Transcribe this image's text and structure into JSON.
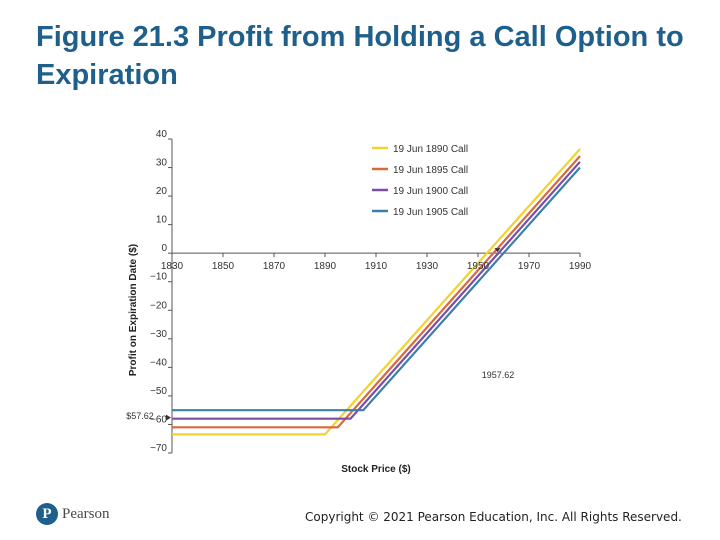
{
  "slide": {
    "title": "Figure 21.3 Profit from Holding a Call Option to Expiration",
    "logo_text": "Pearson",
    "logo_glyph": "P",
    "copyright": "Copyright © 2021 Pearson Education, Inc. All Rights Reserved."
  },
  "chart_data": {
    "type": "line",
    "title": "",
    "xlabel": "Stock Price ($)",
    "ylabel": "Profit on Expiration Date ($)",
    "xlim": [
      1830,
      1990
    ],
    "ylim": [
      -70,
      40
    ],
    "x_ticks": [
      "1830",
      "1850",
      "1870",
      "1890",
      "1910",
      "1930",
      "1950",
      "1970",
      "1990"
    ],
    "y_ticks": [
      "40",
      "30",
      "20",
      "10",
      "0",
      "−10",
      "−20",
      "−30",
      "−40",
      "−50",
      "−60",
      "−70"
    ],
    "x_tick_values": [
      1830,
      1850,
      1870,
      1890,
      1910,
      1930,
      1950,
      1970,
      1990
    ],
    "y_tick_values": [
      40,
      30,
      20,
      10,
      0,
      -10,
      -20,
      -30,
      -40,
      -50,
      -60,
      -70
    ],
    "legend_position": "top-right",
    "series": [
      {
        "name": "19 Jun 1890 Call",
        "color": "#f2d22e",
        "x": [
          1830,
          1890,
          1990
        ],
        "y": [
          -63.5,
          -63.5,
          36.5
        ]
      },
      {
        "name": "19 Jun 1895 Call",
        "color": "#d9683c",
        "x": [
          1830,
          1895,
          1990
        ],
        "y": [
          -61,
          -61,
          34
        ]
      },
      {
        "name": "19 Jun 1900 Call",
        "color": "#7a4ea8",
        "x": [
          1830,
          1900,
          1990
        ],
        "y": [
          -58,
          -58,
          32
        ]
      },
      {
        "name": "19 Jun 1905 Call",
        "color": "#3c7fa8",
        "x": [
          1830,
          1905,
          1990
        ],
        "y": [
          -55,
          -55,
          30
        ]
      }
    ],
    "annotations": [
      {
        "text": "$57.62",
        "x": 1830,
        "y": -57.62,
        "type": "y-marker"
      },
      {
        "text": "1957.62",
        "x": 1957.62,
        "y": 0,
        "type": "x-marker"
      }
    ]
  }
}
